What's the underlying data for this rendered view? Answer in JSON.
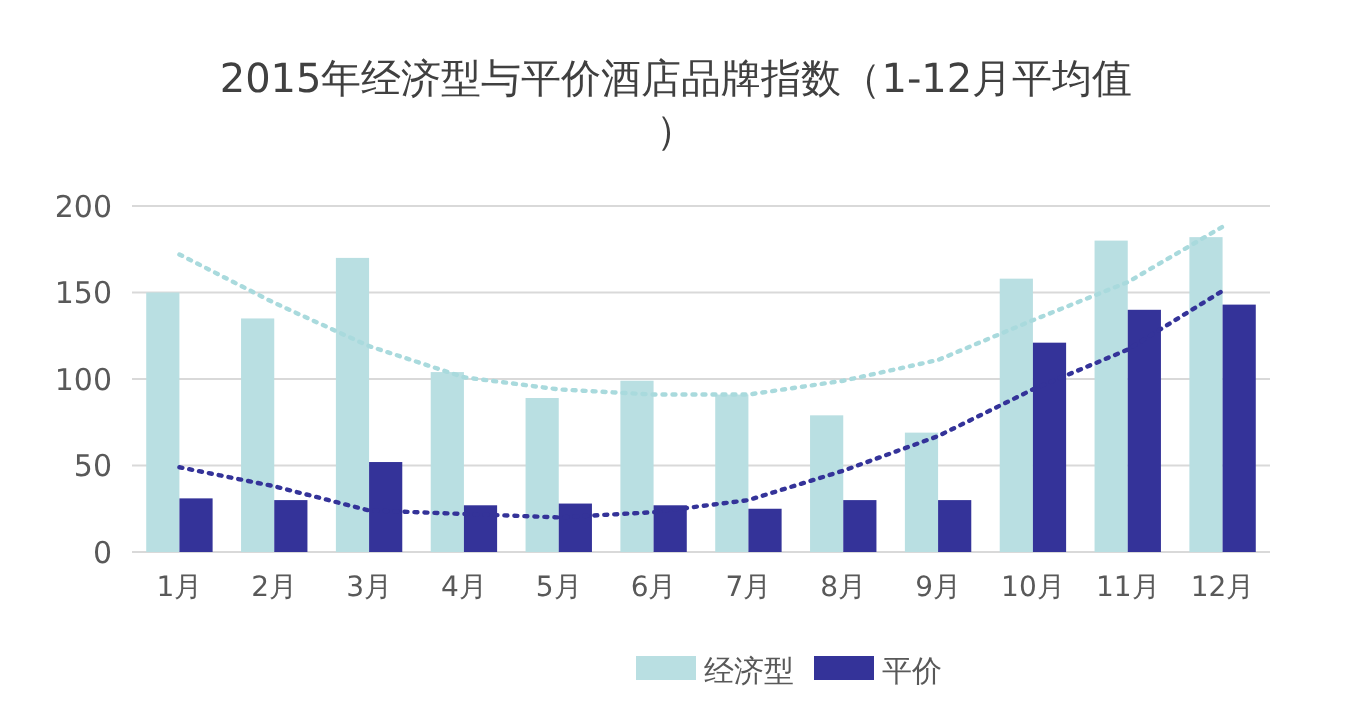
{
  "chart_data": {
    "type": "bar",
    "title": "2015年经济型与平价酒店品牌指数（1-12月平均值）",
    "categories": [
      "1月",
      "2月",
      "3月",
      "4月",
      "5月",
      "6月",
      "7月",
      "8月",
      "9月",
      "10月",
      "11月",
      "12月"
    ],
    "series": [
      {
        "name": "经济型",
        "color": "#b9dfe2",
        "values": [
          150,
          135,
          170,
          104,
          89,
          99,
          91,
          79,
          69,
          158,
          180,
          182
        ]
      },
      {
        "name": "平价",
        "color": "#343399",
        "values": [
          31,
          30,
          52,
          27,
          28,
          27,
          25,
          30,
          30,
          121,
          140,
          143
        ]
      },
      {
        "type": "line",
        "color": "#a9dadd",
        "line_style": "dotted",
        "values": [
          172,
          144,
          119,
          101,
          94,
          91,
          91,
          99,
          111,
          134,
          156,
          188
        ]
      },
      {
        "type": "line",
        "color": "#343399",
        "line_style": "dotted",
        "values": [
          49,
          38,
          24,
          22,
          20,
          23,
          30,
          47,
          67,
          94,
          117,
          151
        ]
      }
    ],
    "ylim": [
      0,
      200
    ],
    "yticks": [
      0,
      50,
      100,
      150,
      200
    ],
    "grid": "y",
    "legend": "bottom"
  }
}
